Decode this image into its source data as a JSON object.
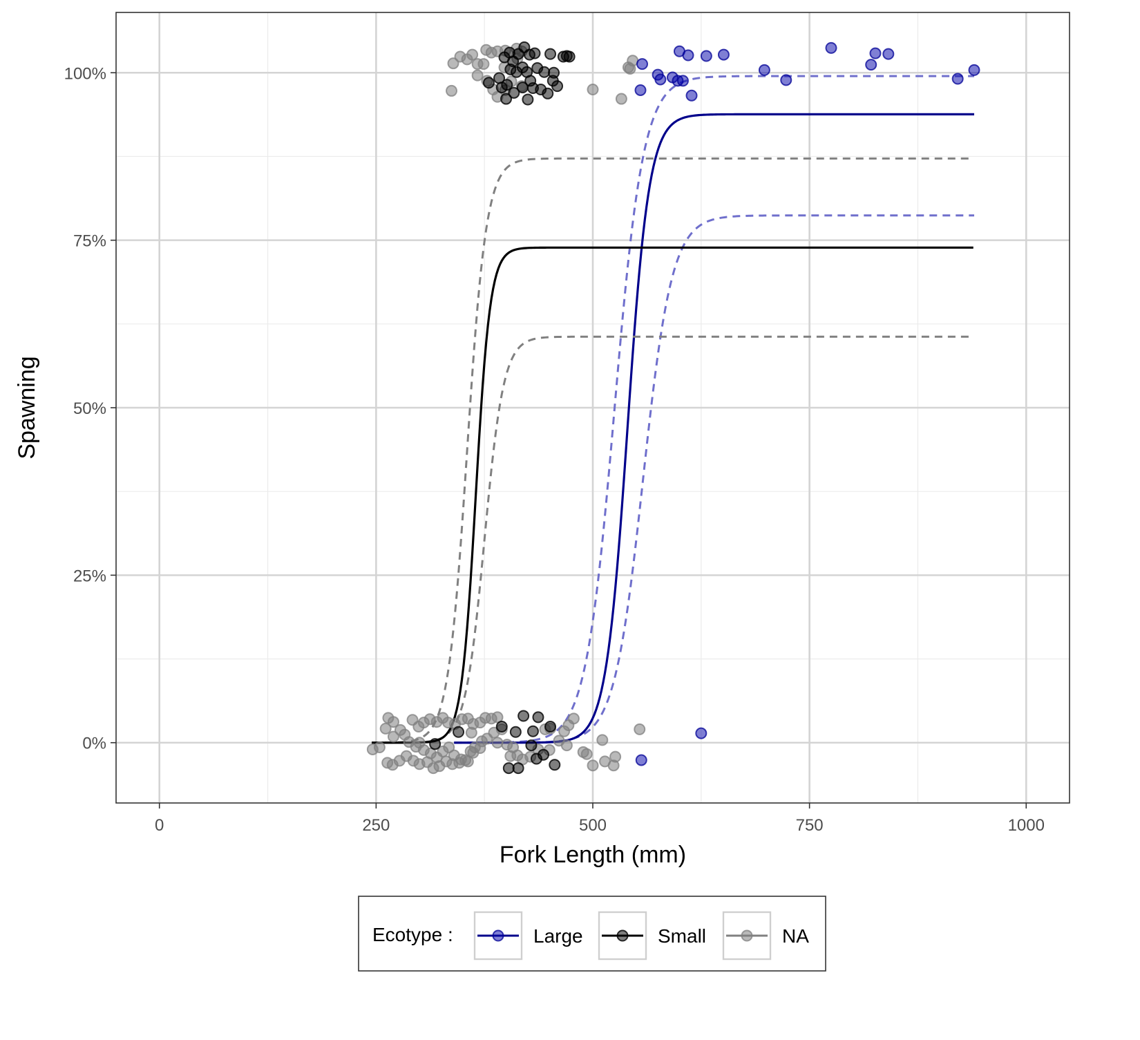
{
  "chart_data": {
    "type": "scatter",
    "title": "",
    "xlabel": "Fork Length (mm)",
    "ylabel": "Spawning",
    "xlim": [
      -50,
      1050
    ],
    "ylim": [
      -0.09,
      1.09
    ],
    "x_ticks": [
      0,
      250,
      500,
      750,
      1000
    ],
    "x_tick_labels": [
      "0",
      "250",
      "500",
      "750",
      "1000"
    ],
    "y_ticks": [
      0,
      0.25,
      0.5,
      0.75,
      1.0
    ],
    "y_tick_labels": [
      "0%",
      "25%",
      "50%",
      "75%",
      "100%"
    ],
    "grid": true,
    "legend": {
      "position": "bottom",
      "title": "Ecotype :",
      "entries": [
        "Large",
        "Small",
        "NA"
      ]
    },
    "colors": {
      "Large": "#00008B",
      "Small": "#000000",
      "NA": "#808080"
    },
    "series": [
      {
        "name": "Large",
        "curve": {
          "x_start": 340,
          "x_end": 940,
          "lower_asymptote": 0.0,
          "upper_asymptote": 0.938,
          "midpoint": 540,
          "slope": 0.08
        },
        "ci_upper": {
          "x_start": 340,
          "x_end": 940,
          "upper_asymptote": 0.995,
          "midpoint": 525,
          "slope": 0.06
        },
        "ci_lower": {
          "x_start": 340,
          "x_end": 940,
          "upper_asymptote": 0.787,
          "midpoint": 558,
          "slope": 0.06
        },
        "points": [
          [
            557,
            1.013
          ],
          [
            555,
            0.974
          ],
          [
            575,
            0.997
          ],
          [
            578,
            0.99
          ],
          [
            592,
            0.993
          ],
          [
            598,
            0.988
          ],
          [
            604,
            0.988
          ],
          [
            614,
            0.966
          ],
          [
            600,
            1.032
          ],
          [
            610,
            1.026
          ],
          [
            631,
            1.025
          ],
          [
            651,
            1.027
          ],
          [
            698,
            1.004
          ],
          [
            723,
            0.989
          ],
          [
            775,
            1.037
          ],
          [
            821,
            1.012
          ],
          [
            826,
            1.029
          ],
          [
            841,
            1.028
          ],
          [
            921,
            0.991
          ],
          [
            940,
            1.004
          ],
          [
            625,
            0.014
          ],
          [
            556,
            -0.026
          ]
        ]
      },
      {
        "name": "Small",
        "curve": {
          "x_start": 245,
          "x_end": 940,
          "lower_asymptote": 0.0,
          "upper_asymptote": 0.739,
          "midpoint": 365,
          "slope": 0.12
        },
        "ci_upper": {
          "x_start": 245,
          "x_end": 940,
          "upper_asymptote": 0.872,
          "midpoint": 355,
          "slope": 0.09
        },
        "ci_lower": {
          "x_start": 245,
          "x_end": 940,
          "upper_asymptote": 0.606,
          "midpoint": 375,
          "slope": 0.09
        },
        "points": [
          [
            398,
            1.023
          ],
          [
            404,
            1.03
          ],
          [
            408,
            1.017
          ],
          [
            414,
            1.028
          ],
          [
            421,
            1.038
          ],
          [
            427,
            1.027
          ],
          [
            433,
            1.029
          ],
          [
            451,
            1.028
          ],
          [
            466,
            1.024
          ],
          [
            470,
            1.025
          ],
          [
            473,
            1.024
          ],
          [
            405,
            1.005
          ],
          [
            412,
            1.001
          ],
          [
            419,
            1.008
          ],
          [
            424,
            1.001
          ],
          [
            428,
            0.988
          ],
          [
            436,
            1.007
          ],
          [
            444,
            1.001
          ],
          [
            455,
            1.0
          ],
          [
            392,
            0.992
          ],
          [
            401,
            0.982
          ],
          [
            409,
            0.97
          ],
          [
            419,
            0.978
          ],
          [
            431,
            0.977
          ],
          [
            440,
            0.975
          ],
          [
            448,
            0.969
          ],
          [
            459,
            0.98
          ],
          [
            400,
            0.961
          ],
          [
            425,
            0.96
          ],
          [
            380,
            0.985
          ],
          [
            395,
            0.978
          ],
          [
            454,
            0.988
          ],
          [
            420,
            0.04
          ],
          [
            437,
            0.038
          ],
          [
            451,
            0.024
          ],
          [
            431,
            0.017
          ],
          [
            395,
            0.024
          ],
          [
            411,
            0.016
          ],
          [
            429,
            -0.004
          ],
          [
            443,
            -0.018
          ],
          [
            435,
            -0.024
          ],
          [
            456,
            -0.033
          ],
          [
            403,
            -0.038
          ],
          [
            414,
            -0.038
          ],
          [
            318,
            -0.002
          ],
          [
            345,
            0.016
          ]
        ]
      },
      {
        "name": "NA",
        "curve": null,
        "points": [
          [
            339,
            1.014
          ],
          [
            347,
            1.024
          ],
          [
            355,
            1.02
          ],
          [
            361,
            1.027
          ],
          [
            367,
            1.013
          ],
          [
            377,
            1.034
          ],
          [
            383,
            1.03
          ],
          [
            390,
            1.032
          ],
          [
            399,
            1.033
          ],
          [
            412,
            1.036
          ],
          [
            418,
            1.032
          ],
          [
            374,
            1.013
          ],
          [
            398,
            1.008
          ],
          [
            367,
            0.996
          ],
          [
            378,
            0.988
          ],
          [
            385,
            0.975
          ],
          [
            390,
            0.964
          ],
          [
            399,
            0.974
          ],
          [
            406,
            0.987
          ],
          [
            418,
            0.98
          ],
          [
            337,
            0.973
          ],
          [
            413,
            1.021
          ],
          [
            500,
            0.975
          ],
          [
            533,
            0.961
          ],
          [
            541,
            1.008
          ],
          [
            543,
            1.006
          ],
          [
            546,
            1.018
          ],
          [
            264,
            0.037
          ],
          [
            270,
            0.031
          ],
          [
            278,
            0.019
          ],
          [
            283,
            0.012
          ],
          [
            292,
            0.034
          ],
          [
            299,
            0.024
          ],
          [
            305,
            0.03
          ],
          [
            312,
            0.035
          ],
          [
            320,
            0.031
          ],
          [
            327,
            0.037
          ],
          [
            333,
            0.03
          ],
          [
            341,
            0.028
          ],
          [
            349,
            0.035
          ],
          [
            356,
            0.036
          ],
          [
            362,
            0.028
          ],
          [
            370,
            0.03
          ],
          [
            376,
            0.037
          ],
          [
            383,
            0.036
          ],
          [
            390,
            0.038
          ],
          [
            261,
            0.021
          ],
          [
            270,
            0.009
          ],
          [
            288,
            0.001
          ],
          [
            296,
            -0.006
          ],
          [
            305,
            -0.011
          ],
          [
            313,
            -0.016
          ],
          [
            320,
            -0.022
          ],
          [
            327,
            -0.013
          ],
          [
            334,
            -0.007
          ],
          [
            340,
            -0.019
          ],
          [
            348,
            -0.025
          ],
          [
            356,
            -0.028
          ],
          [
            362,
            -0.015
          ],
          [
            370,
            -0.008
          ],
          [
            378,
            0.006
          ],
          [
            386,
            0.015
          ],
          [
            395,
            0.02
          ],
          [
            246,
            -0.01
          ],
          [
            254,
            -0.007
          ],
          [
            263,
            -0.03
          ],
          [
            269,
            -0.033
          ],
          [
            277,
            -0.027
          ],
          [
            285,
            -0.02
          ],
          [
            293,
            -0.027
          ],
          [
            300,
            -0.032
          ],
          [
            309,
            -0.029
          ],
          [
            316,
            -0.038
          ],
          [
            323,
            -0.035
          ],
          [
            331,
            -0.028
          ],
          [
            338,
            -0.032
          ],
          [
            346,
            -0.03
          ],
          [
            353,
            -0.026
          ],
          [
            359,
            -0.013
          ],
          [
            364,
            -0.007
          ],
          [
            372,
            0.002
          ],
          [
            390,
            0.0
          ],
          [
            401,
            -0.003
          ],
          [
            408,
            -0.007
          ],
          [
            413,
            -0.019
          ],
          [
            419,
            -0.025
          ],
          [
            428,
            -0.021
          ],
          [
            437,
            -0.01
          ],
          [
            445,
            0.02
          ],
          [
            451,
            0.021
          ],
          [
            461,
            0.003
          ],
          [
            467,
            0.017
          ],
          [
            472,
            0.026
          ],
          [
            478,
            0.036
          ],
          [
            489,
            -0.014
          ],
          [
            493,
            -0.017
          ],
          [
            500,
            -0.034
          ],
          [
            511,
            0.004
          ],
          [
            514,
            -0.028
          ],
          [
            524,
            -0.034
          ],
          [
            526,
            -0.021
          ],
          [
            554,
            0.02
          ],
          [
            450,
            -0.011
          ],
          [
            470,
            -0.004
          ],
          [
            405,
            -0.02
          ],
          [
            360,
            0.015
          ],
          [
            300,
            0.0
          ]
        ]
      }
    ]
  }
}
